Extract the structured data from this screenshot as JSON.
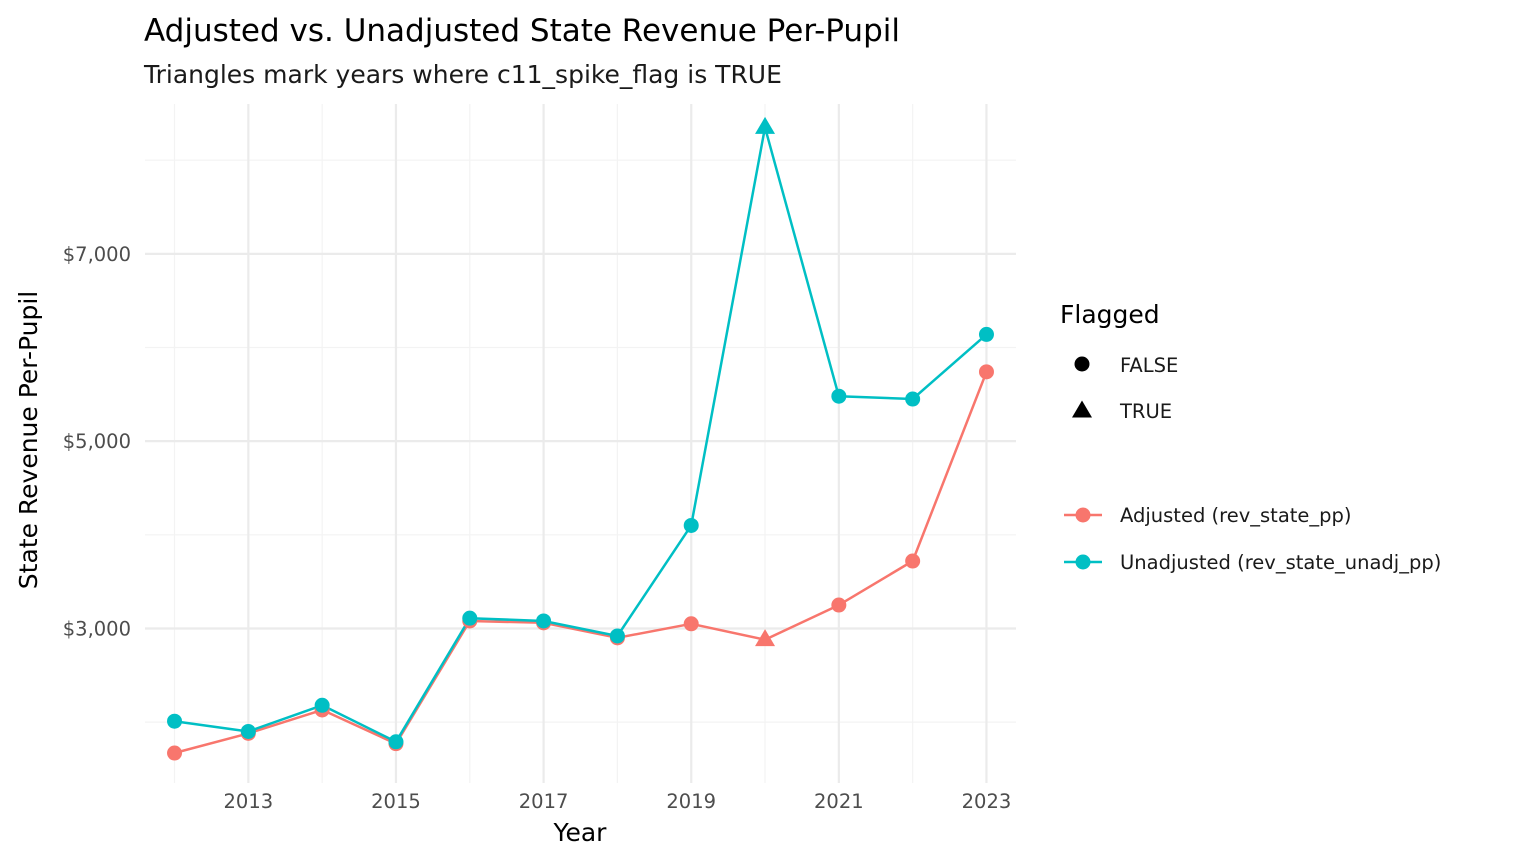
{
  "chart_data": {
    "type": "line",
    "title": "Adjusted vs. Unadjusted State Revenue Per-Pupil",
    "subtitle": "Triangles mark years where c11_spike_flag is TRUE",
    "xlabel": "Year",
    "ylabel": "State Revenue Per-Pupil",
    "x": [
      2012,
      2013,
      2014,
      2015,
      2016,
      2017,
      2018,
      2019,
      2020,
      2021,
      2022,
      2023
    ],
    "x_ticks": [
      2013,
      2015,
      2017,
      2019,
      2021,
      2023
    ],
    "x_tick_labels": [
      "2013",
      "2015",
      "2017",
      "2019",
      "2021",
      "2023"
    ],
    "xlim": [
      2011.6,
      2023.4
    ],
    "y_ticks": [
      3000,
      5000,
      7000
    ],
    "y_tick_labels": [
      "$3,000",
      "$5,000",
      "$7,000"
    ],
    "ylim": [
      1350,
      8600
    ],
    "grid": true,
    "legend_position": "right",
    "series": [
      {
        "name": "Adjusted (rev_state_pp)",
        "color": "#F8766D",
        "values": [
          1670,
          1880,
          2130,
          1770,
          3080,
          3060,
          2900,
          3050,
          2880,
          3250,
          3720,
          5740
        ],
        "flagged": [
          false,
          false,
          false,
          false,
          false,
          false,
          false,
          false,
          true,
          false,
          false,
          false
        ]
      },
      {
        "name": "Unadjusted (rev_state_unadj_pp)",
        "color": "#00BFC4",
        "values": [
          2010,
          1900,
          2180,
          1790,
          3110,
          3080,
          2920,
          4100,
          8350,
          5480,
          5450,
          6140
        ],
        "flagged": [
          false,
          false,
          false,
          false,
          false,
          false,
          false,
          false,
          true,
          false,
          false,
          false
        ]
      }
    ],
    "shape_legend": {
      "title": "Flagged",
      "entries": [
        {
          "label": "FALSE",
          "shape": "circle"
        },
        {
          "label": "TRUE",
          "shape": "triangle"
        }
      ]
    }
  }
}
